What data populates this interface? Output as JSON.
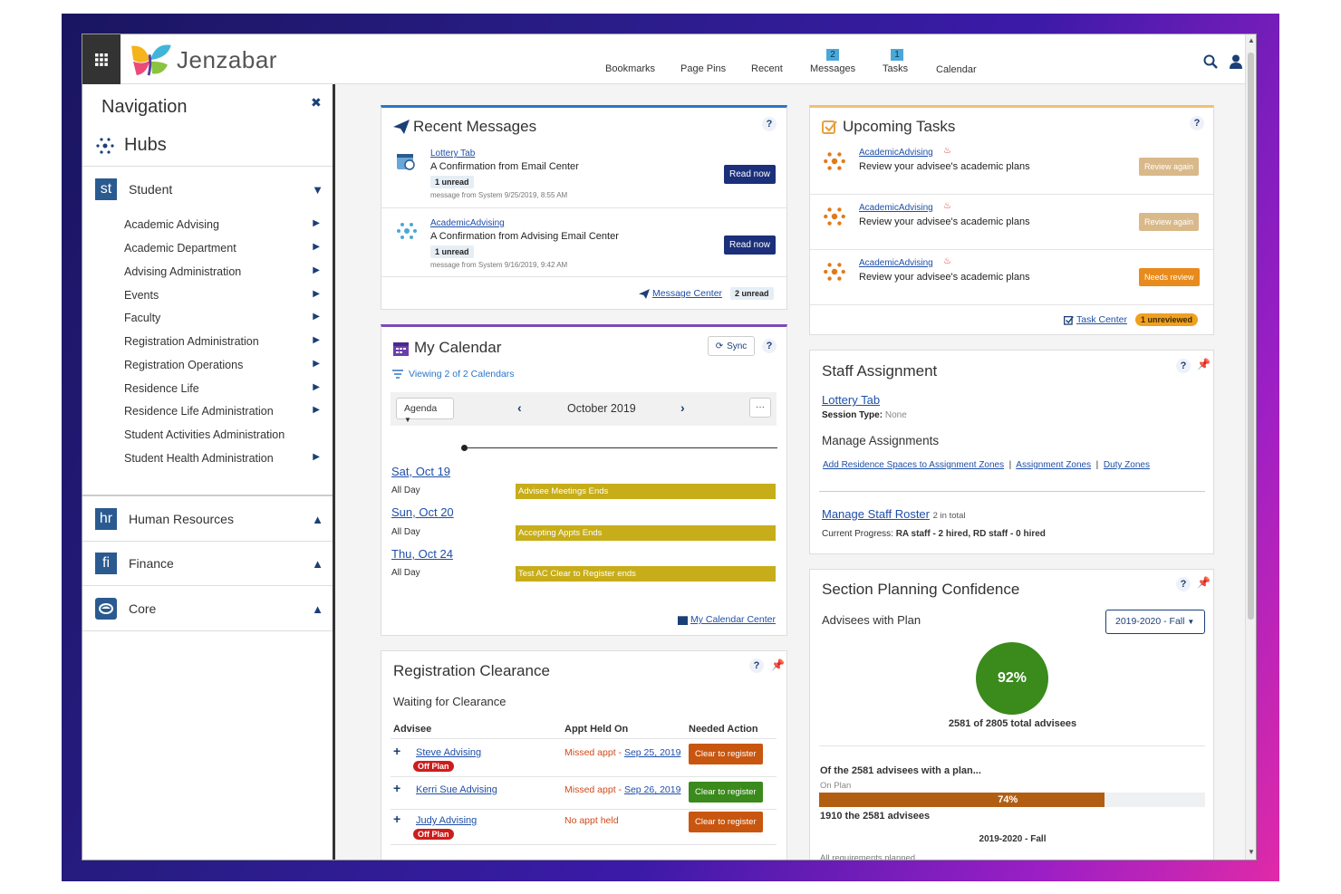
{
  "header": {
    "brand": "Jenzabar",
    "nav": [
      {
        "label": "Bookmarks"
      },
      {
        "label": "Page Pins"
      },
      {
        "label": "Recent"
      },
      {
        "label": "Messages",
        "badge": "2"
      },
      {
        "label": "Tasks",
        "badge": "1"
      },
      {
        "label": "Calendar"
      }
    ]
  },
  "sidebar": {
    "title": "Navigation",
    "hubs_label": "Hubs",
    "hubs": [
      {
        "abbr": "st",
        "label": "Student",
        "expanded": true
      },
      {
        "abbr": "hr",
        "label": "Human Resources",
        "expanded": false
      },
      {
        "abbr": "fi",
        "label": "Finance",
        "expanded": false
      },
      {
        "abbr": "",
        "label": "Core",
        "expanded": false
      }
    ],
    "student_items": [
      {
        "label": "Academic Advising",
        "has_arrow": true
      },
      {
        "label": "Academic Department",
        "has_arrow": true
      },
      {
        "label": "Advising Administration",
        "has_arrow": true
      },
      {
        "label": "Events",
        "has_arrow": true
      },
      {
        "label": "Faculty",
        "has_arrow": true
      },
      {
        "label": "Registration Administration",
        "has_arrow": true
      },
      {
        "label": "Registration Operations",
        "has_arrow": true
      },
      {
        "label": "Residence Life",
        "has_arrow": true
      },
      {
        "label": "Residence Life Administration",
        "has_arrow": true
      },
      {
        "label": "Student Activities Administration",
        "has_arrow": false
      },
      {
        "label": "Student Health Administration",
        "has_arrow": true
      }
    ]
  },
  "recent_messages": {
    "title": "Recent Messages",
    "messages": [
      {
        "source": "Lottery Tab",
        "subject": "A Confirmation from Email Center",
        "unread": "1 unread",
        "meta": "message from System 9/25/2019, 8:55 AM",
        "button": "Read now"
      },
      {
        "source": "AcademicAdvising",
        "subject": "A Confirmation from Advising Email Center",
        "unread": "1 unread",
        "meta": "message from System 9/16/2019, 9:42 AM",
        "button": "Read now"
      }
    ],
    "footer_link": "Message Center",
    "footer_badge": "2 unread"
  },
  "calendar": {
    "title": "My Calendar",
    "sync": "Sync",
    "viewing": "Viewing 2 of 2 Calendars",
    "view_select": "Agenda",
    "month": "October 2019",
    "more": "···",
    "days": [
      {
        "date": "Sat, Oct 19",
        "allday": "All Day",
        "event": "Advisee Meetings Ends"
      },
      {
        "date": "Sun, Oct 20",
        "allday": "All Day",
        "event": "Accepting Appts Ends"
      },
      {
        "date": "Thu, Oct 24",
        "allday": "All Day",
        "event": "Test AC Clear to Register ends"
      }
    ],
    "footer_link": "My Calendar Center"
  },
  "registration": {
    "title": "Registration Clearance",
    "subtitle": "Waiting for Clearance",
    "headers": [
      "Advisee",
      "Appt Held On",
      "Needed Action"
    ],
    "rows": [
      {
        "name": "Steve Advising",
        "off_plan": "Off Plan",
        "status": "Missed appt - ",
        "date": "Sep 25, 2019",
        "action": "Clear to register",
        "action_color": "#c8560f"
      },
      {
        "name": "Kerri Sue Advising",
        "off_plan": "",
        "status": "Missed appt - ",
        "date": "Sep 26, 2019",
        "action": "Clear to register",
        "action_color": "#3a8a1c"
      },
      {
        "name": "Judy Advising",
        "off_plan": "Off Plan",
        "status": "No appt held",
        "date": "",
        "action": "Clear to register",
        "action_color": "#c8560f"
      }
    ]
  },
  "tasks": {
    "title": "Upcoming Tasks",
    "items": [
      {
        "source": "AcademicAdvising",
        "text": "Review your advisee's academic plans",
        "action": "Review again",
        "action_color": "#d9b98a"
      },
      {
        "source": "AcademicAdvising",
        "text": "Review your advisee's academic plans",
        "action": "Review again",
        "action_color": "#d9b98a"
      },
      {
        "source": "AcademicAdvising",
        "text": "Review your advisee's academic plans",
        "action": "Needs review",
        "action_color": "#e88a1c"
      }
    ],
    "footer_link": "Task Center",
    "footer_badge": "1 unreviewed"
  },
  "staff": {
    "title": "Staff Assignment",
    "link": "Lottery Tab",
    "session_label": "Session Type:",
    "session_value": "None",
    "manage": "Manage Assignments",
    "links": [
      "Add Residence Spaces to Assignment Zones",
      "Assignment Zones",
      "Duty Zones"
    ],
    "roster_link": "Manage Staff Roster",
    "roster_count": "2 in total",
    "progress_label": "Current Progress:",
    "progress_value": "RA staff - 2 hired, RD staff - 0 hired"
  },
  "planning": {
    "title": "Section Planning Confidence",
    "subtitle": "Advisees with Plan",
    "term_select": "2019-2020 - Fall",
    "circle_pct": "92%",
    "circle_caption": "2581 of 2805 total advisees",
    "of_the": "Of the 2581 advisees with a plan...",
    "on_plan_label": "On Plan",
    "bar_pct_label": "74%",
    "bar_fraction": 0.74,
    "bar_caption": "1910 the 2581 advisees",
    "term_label": "2019-2020 - Fall",
    "footer": "All requirements planned"
  }
}
